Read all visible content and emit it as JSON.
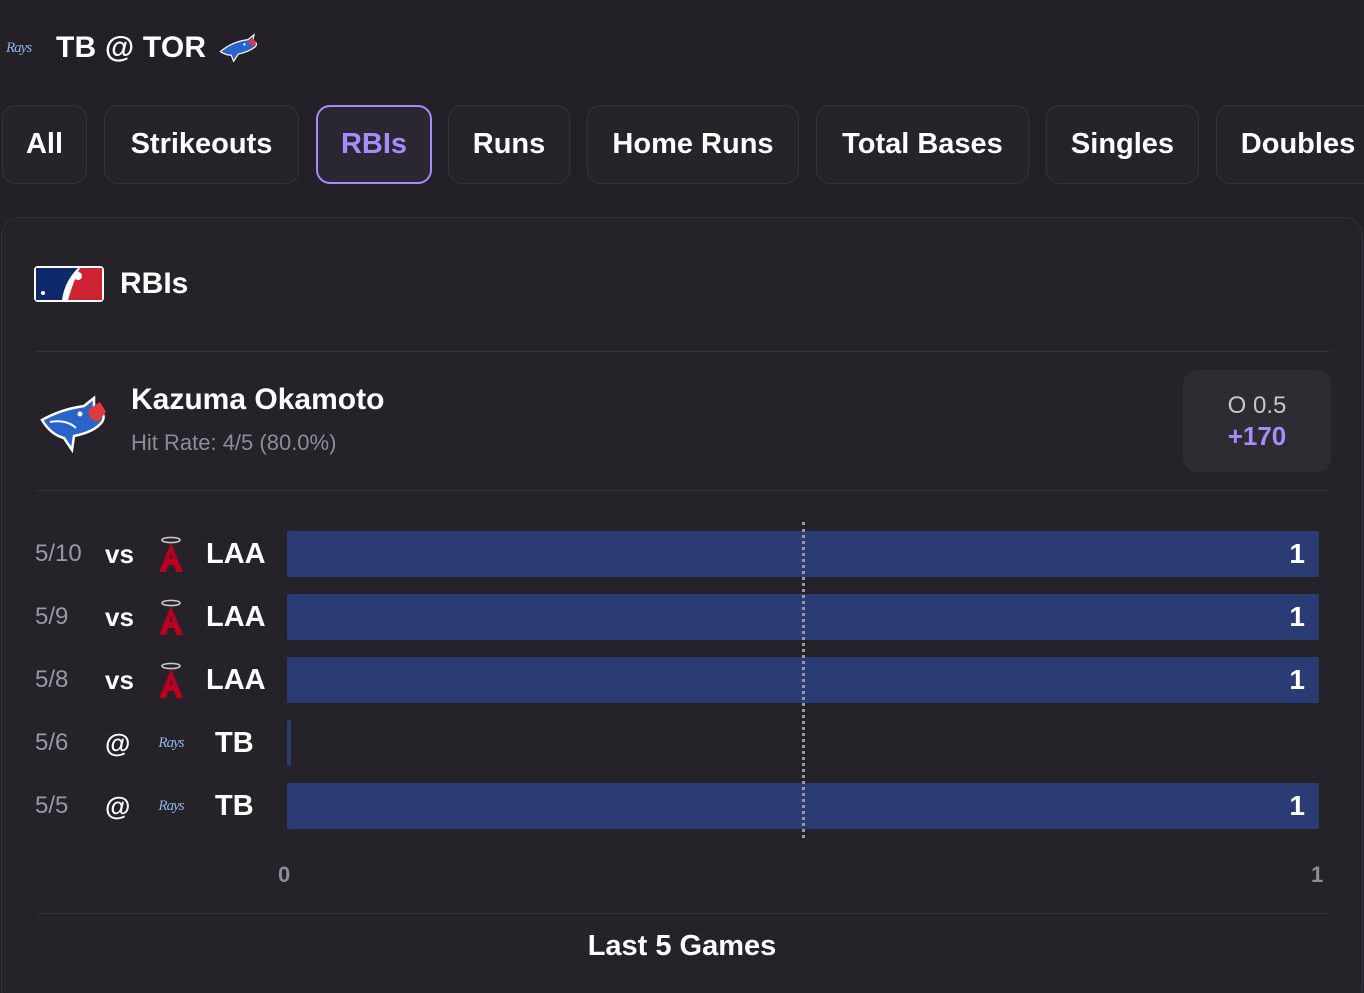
{
  "header": {
    "away_logo": "rays-logo",
    "away_logo_text": "Rays",
    "matchup": "TB @ TOR",
    "home_logo": "blue-jays-logo"
  },
  "tabs": [
    {
      "label": "All",
      "active": false
    },
    {
      "label": "Strikeouts",
      "active": false
    },
    {
      "label": "RBIs",
      "active": true
    },
    {
      "label": "Runs",
      "active": false
    },
    {
      "label": "Home Runs",
      "active": false
    },
    {
      "label": "Total Bases",
      "active": false
    },
    {
      "label": "Singles",
      "active": false
    },
    {
      "label": "Doubles",
      "active": false
    }
  ],
  "section": {
    "logo": "mlb-logo",
    "title": "RBIs"
  },
  "player": {
    "team_logo": "blue-jays-logo",
    "name": "Kazuma Okamoto",
    "hit_rate": "Hit Rate: 4/5 (80.0%)",
    "line": "O 0.5",
    "odds": "+170"
  },
  "colors": {
    "accent": "#a78bfa",
    "bar": "#2b3c75",
    "background": "#232127"
  },
  "chart_data": {
    "type": "bar",
    "orientation": "horizontal",
    "categories": [
      "5/10",
      "5/9",
      "5/8",
      "5/6",
      "5/5"
    ],
    "games": [
      {
        "date": "5/10",
        "location": "vs",
        "opponent": "LAA",
        "opponent_logo": "angels-logo",
        "value": 1,
        "label": "1"
      },
      {
        "date": "5/9",
        "location": "vs",
        "opponent": "LAA",
        "opponent_logo": "angels-logo",
        "value": 1,
        "label": "1"
      },
      {
        "date": "5/8",
        "location": "vs",
        "opponent": "LAA",
        "opponent_logo": "angels-logo",
        "value": 1,
        "label": "1"
      },
      {
        "date": "5/6",
        "location": "@",
        "opponent": "TB",
        "opponent_logo": "rays-logo",
        "value": 0,
        "label": ""
      },
      {
        "date": "5/5",
        "location": "@",
        "opponent": "TB",
        "opponent_logo": "rays-logo",
        "value": 1,
        "label": "1"
      }
    ],
    "xlim": [
      0,
      1
    ],
    "x_ticks": [
      "0",
      "1"
    ],
    "reference_line": 0.5,
    "xlabel": "Last 5 Games"
  }
}
